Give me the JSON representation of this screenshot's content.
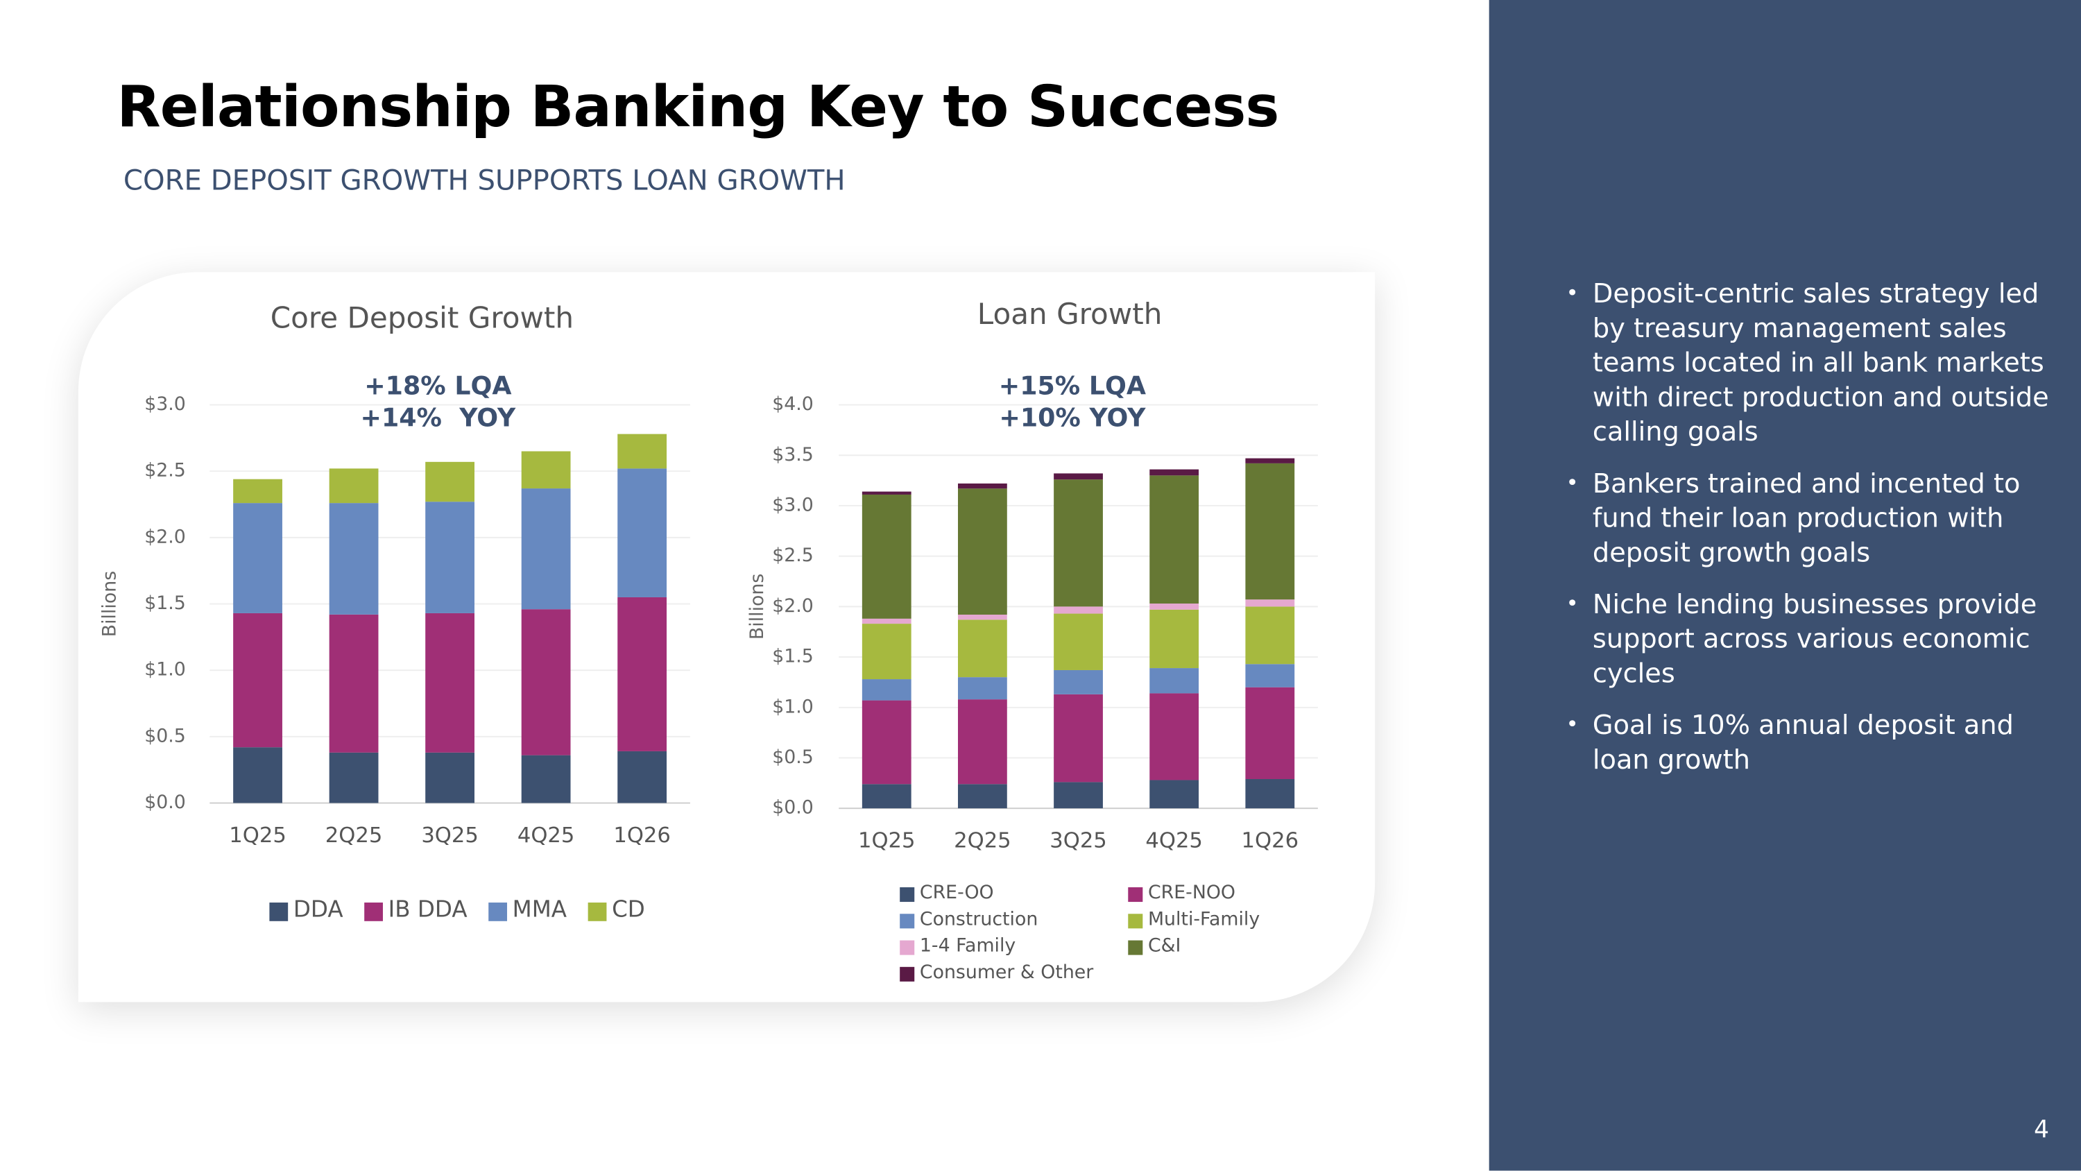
{
  "header": {
    "title": "Relationship Banking Key to Success",
    "subtitle": "CORE DEPOSIT GROWTH SUPPORTS LOAN GROWTH"
  },
  "sidebar": {
    "bullets": [
      "Deposit-centric sales strategy led by treasury management sales teams located in all bank markets with direct production and outside calling goals",
      "Bankers trained and incented to fund their loan production with deposit growth goals",
      "Niche lending businesses provide support across various economic cycles",
      "Goal is 10% annual deposit and loan growth"
    ]
  },
  "page_number": "4",
  "chart_data": [
    {
      "type": "stacked_bar",
      "title": "Core Deposit Growth",
      "annotations": [
        "+18% LQA",
        "+14%  YOY"
      ],
      "y_label": "Billions",
      "categories": [
        "1Q25",
        "2Q25",
        "3Q25",
        "4Q25",
        "1Q26"
      ],
      "series": [
        {
          "name": "DDA",
          "color": "#3d5170",
          "values": [
            0.42,
            0.38,
            0.38,
            0.36,
            0.39
          ]
        },
        {
          "name": "IB DDA",
          "color": "#a02f76",
          "values": [
            1.01,
            1.04,
            1.05,
            1.1,
            1.16
          ]
        },
        {
          "name": "MMA",
          "color": "#6789c0",
          "values": [
            0.83,
            0.84,
            0.84,
            0.91,
            0.97
          ]
        },
        {
          "name": "CD",
          "color": "#a6b93f",
          "values": [
            0.18,
            0.26,
            0.3,
            0.28,
            0.26
          ]
        }
      ],
      "ylim": [
        0,
        3
      ],
      "yticks": [
        {
          "value": 0,
          "label": "$0.0"
        },
        {
          "value": 0.5,
          "label": "$0.5"
        },
        {
          "value": 1,
          "label": "$1.0"
        },
        {
          "value": 1.5,
          "label": "$1.5"
        },
        {
          "value": 2,
          "label": "$2.0"
        },
        {
          "value": 2.5,
          "label": "$2.5"
        },
        {
          "value": 3,
          "label": "$3.0"
        }
      ],
      "grid": true,
      "legend": "bottom"
    },
    {
      "type": "stacked_bar",
      "title": "Loan Growth",
      "annotations": [
        "+15% LQA",
        "+10% YOY"
      ],
      "y_label": "Billions",
      "categories": [
        "1Q25",
        "2Q25",
        "3Q25",
        "4Q25",
        "1Q26"
      ],
      "series": [
        {
          "name": "CRE-OO",
          "color": "#3d5170",
          "values": [
            0.24,
            0.24,
            0.26,
            0.28,
            0.29
          ]
        },
        {
          "name": "CRE-NOO",
          "color": "#a02f76",
          "values": [
            0.83,
            0.84,
            0.87,
            0.86,
            0.91
          ]
        },
        {
          "name": "Construction",
          "color": "#6789c0",
          "values": [
            0.21,
            0.22,
            0.24,
            0.25,
            0.23
          ]
        },
        {
          "name": "Multi-Family",
          "color": "#a6b93f",
          "values": [
            0.55,
            0.57,
            0.56,
            0.58,
            0.57
          ]
        },
        {
          "name": "1-4 Family",
          "color": "#e5a8d0",
          "values": [
            0.05,
            0.05,
            0.07,
            0.06,
            0.07
          ]
        },
        {
          "name": "C&I",
          "color": "#667834",
          "values": [
            1.23,
            1.25,
            1.26,
            1.27,
            1.35
          ]
        },
        {
          "name": "Consumer & Other",
          "color": "#5a1a45",
          "values": [
            0.03,
            0.05,
            0.06,
            0.06,
            0.05
          ]
        }
      ],
      "ylim": [
        0,
        4
      ],
      "yticks": [
        {
          "value": 0,
          "label": "$0.0"
        },
        {
          "value": 0.5,
          "label": "$0.5"
        },
        {
          "value": 1,
          "label": "$1.0"
        },
        {
          "value": 1.5,
          "label": "$1.5"
        },
        {
          "value": 2,
          "label": "$2.0"
        },
        {
          "value": 2.5,
          "label": "$2.5"
        },
        {
          "value": 3,
          "label": "$3.0"
        },
        {
          "value": 3.5,
          "label": "$3.5"
        },
        {
          "value": 4,
          "label": "$4.0"
        }
      ],
      "grid": true,
      "legend": "bottom"
    }
  ]
}
